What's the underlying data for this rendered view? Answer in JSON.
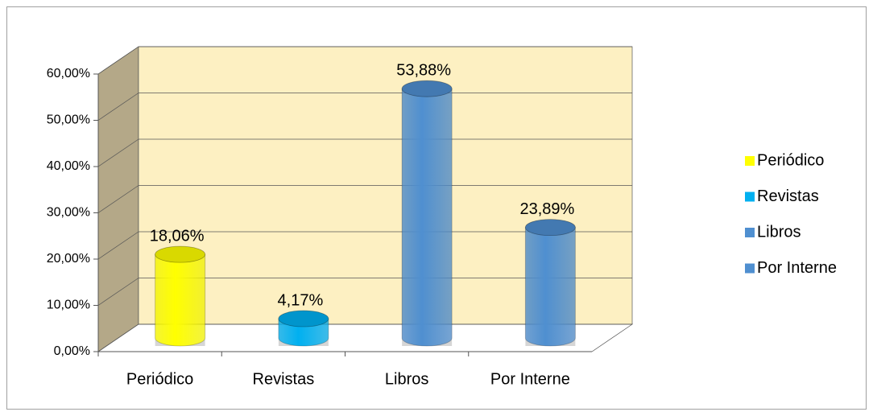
{
  "chart_data": {
    "type": "bar3d",
    "categories": [
      "Periódico",
      "Revistas",
      "Libros",
      "Por Interne"
    ],
    "values": [
      18.06,
      4.17,
      53.88,
      23.89
    ],
    "value_labels": [
      "18,06%",
      "4,17%",
      "53,88%",
      "23,89%"
    ],
    "colors": [
      "#ffff00",
      "#00b0f0",
      "#4f8fd0",
      "#4f8fd0"
    ],
    "ylim": [
      0,
      60
    ],
    "yticks": [
      {
        "value": 0,
        "label": "0,00%"
      },
      {
        "value": 10,
        "label": "10,00%"
      },
      {
        "value": 20,
        "label": "20,00%"
      },
      {
        "value": 30,
        "label": "30,00%"
      },
      {
        "value": 40,
        "label": "40,00%"
      },
      {
        "value": 50,
        "label": "50,00%"
      },
      {
        "value": 60,
        "label": "60,00%"
      }
    ],
    "grid": true,
    "legend": "right"
  }
}
